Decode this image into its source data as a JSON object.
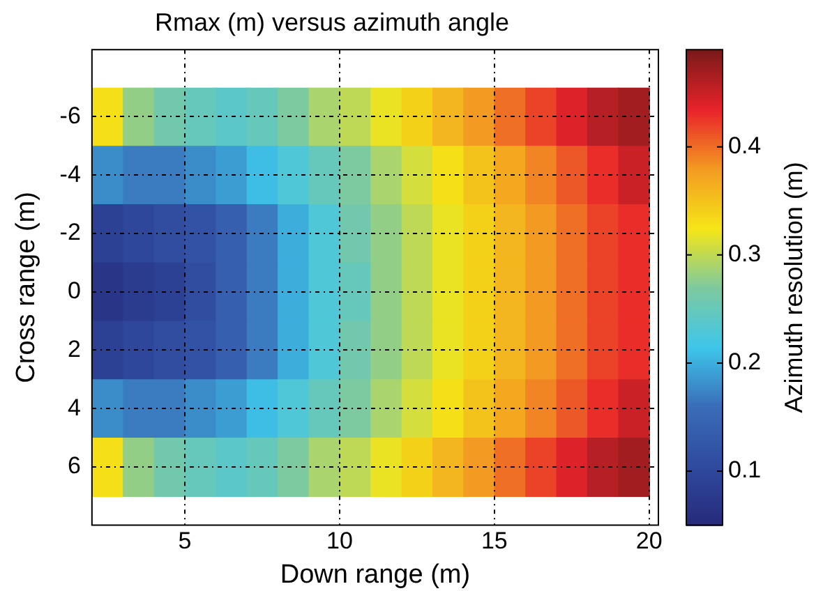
{
  "chart_data": {
    "type": "heatmap",
    "title": "Rmax (m) versus azimuth angle",
    "xlabel": "Down range (m)",
    "ylabel": "Cross range (m)",
    "clabel": "Azimuth resolution (m)",
    "x": [
      2.5,
      3.5,
      4.5,
      5.5,
      6.5,
      7.5,
      8.5,
      9.5,
      10.5,
      11.5,
      12.5,
      13.5,
      14.5,
      15.5,
      16.5,
      17.5,
      18.5,
      19.5
    ],
    "y_categories": [
      "-6",
      "-4",
      "-2",
      "0",
      "2",
      "4",
      "6"
    ],
    "cells": [
      [
        0.33,
        0.28,
        0.26,
        0.25,
        0.24,
        0.25,
        0.27,
        0.29,
        0.3,
        0.32,
        0.34,
        0.36,
        0.38,
        0.4,
        0.42,
        0.44,
        0.46,
        0.47
      ],
      [
        0.18,
        0.17,
        0.17,
        0.18,
        0.19,
        0.21,
        0.23,
        0.25,
        0.27,
        0.29,
        0.31,
        0.33,
        0.35,
        0.37,
        0.39,
        0.41,
        0.43,
        0.45
      ],
      [
        0.09,
        0.1,
        0.11,
        0.12,
        0.14,
        0.17,
        0.2,
        0.23,
        0.26,
        0.28,
        0.3,
        0.32,
        0.34,
        0.36,
        0.38,
        0.4,
        0.42,
        0.43
      ],
      [
        0.07,
        0.08,
        0.09,
        0.11,
        0.14,
        0.17,
        0.2,
        0.23,
        0.25,
        0.28,
        0.3,
        0.32,
        0.34,
        0.36,
        0.38,
        0.4,
        0.42,
        0.43
      ],
      [
        0.09,
        0.1,
        0.11,
        0.12,
        0.14,
        0.17,
        0.2,
        0.23,
        0.26,
        0.28,
        0.3,
        0.32,
        0.34,
        0.36,
        0.38,
        0.4,
        0.42,
        0.43
      ],
      [
        0.18,
        0.17,
        0.17,
        0.18,
        0.19,
        0.21,
        0.23,
        0.25,
        0.27,
        0.29,
        0.31,
        0.33,
        0.35,
        0.37,
        0.39,
        0.41,
        0.43,
        0.45
      ],
      [
        0.33,
        0.28,
        0.26,
        0.25,
        0.24,
        0.25,
        0.27,
        0.29,
        0.3,
        0.32,
        0.34,
        0.36,
        0.38,
        0.4,
        0.42,
        0.44,
        0.46,
        0.47
      ]
    ],
    "colors": [
      "#262a7a",
      "#2f4a9e",
      "#3a6cb8",
      "#3ec6ea",
      "#7dc9a0",
      "#f5e616",
      "#f39a22",
      "#e8232a",
      "#7a1a1a"
    ],
    "clim": [
      0.05,
      0.49
    ],
    "cticks": [
      0.1,
      0.2,
      0.3,
      0.4
    ],
    "xlim": [
      2,
      20.3
    ],
    "xticks": [
      5,
      10,
      15,
      20
    ],
    "grid": true
  }
}
